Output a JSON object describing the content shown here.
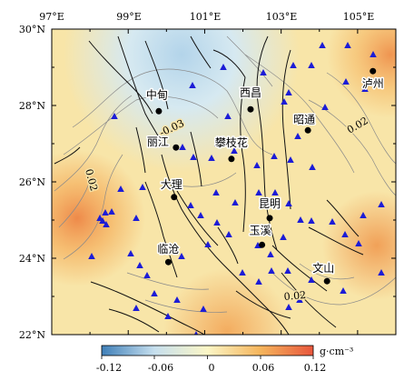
{
  "map": {
    "lon_ticks": [
      "97°E",
      "99°E",
      "101°E",
      "103°E",
      "105°E"
    ],
    "lat_ticks": [
      "30°N",
      "28°N",
      "26°N",
      "24°N",
      "22°N"
    ],
    "cities": [
      {
        "name": "中甸",
        "lon": 99.8,
        "lat": 27.85
      },
      {
        "name": "丽江",
        "lon": 100.25,
        "lat": 26.9
      },
      {
        "name": "西昌",
        "lon": 102.2,
        "lat": 27.9
      },
      {
        "name": "昭通",
        "lon": 103.7,
        "lat": 27.35
      },
      {
        "name": "泸州",
        "lon": 105.4,
        "lat": 28.9
      },
      {
        "name": "攀枝花",
        "lon": 101.7,
        "lat": 26.6
      },
      {
        "name": "大理",
        "lon": 100.2,
        "lat": 25.6
      },
      {
        "name": "昆明",
        "lon": 102.7,
        "lat": 25.05
      },
      {
        "name": "玉溪",
        "lon": 102.5,
        "lat": 24.35
      },
      {
        "name": "临沧",
        "lon": 100.05,
        "lat": 23.9
      },
      {
        "name": "文山",
        "lon": 104.2,
        "lat": 23.4
      }
    ],
    "contour_labels": [
      "0.02",
      "-0.03",
      "0.02",
      "0.02"
    ],
    "station_symbol": "blue-triangle",
    "colorbar": {
      "ticks": [
        "-0.12",
        "-0.06",
        "0",
        "0.06",
        "0.12"
      ],
      "unit": "g·cm⁻³",
      "range": [
        -0.12,
        0.12
      ],
      "colors": [
        "#3f7fb8",
        "#c6dfee",
        "#fbf6c6",
        "#f5b55c",
        "#e8563c"
      ]
    }
  }
}
